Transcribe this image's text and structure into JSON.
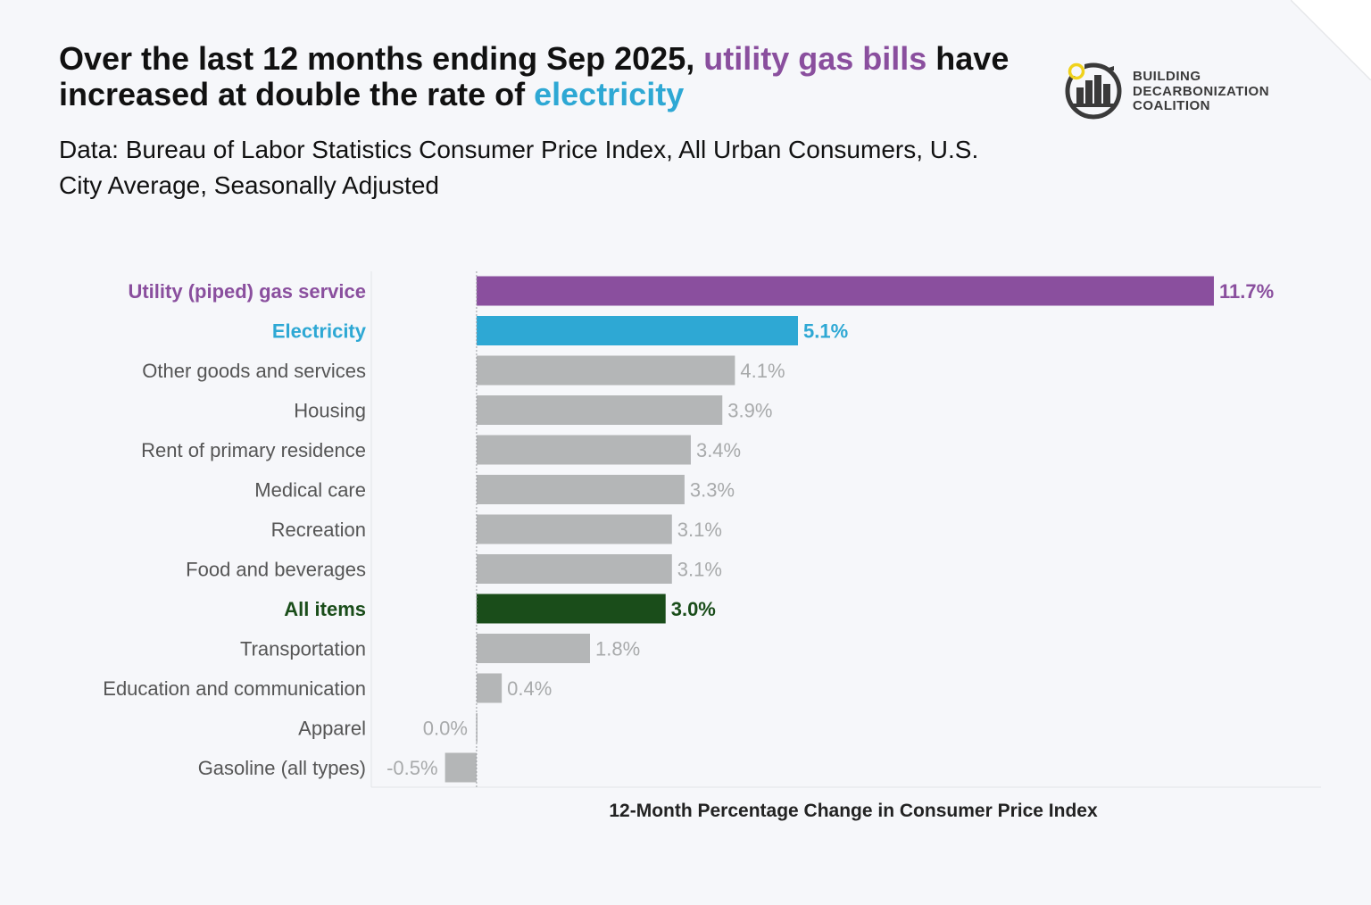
{
  "title": {
    "part1": "Over the last 12 months ending Sep 2025, ",
    "highlight_gas": "utility gas bills",
    "part2": " have increased at double the rate of ",
    "highlight_elec": "electricity"
  },
  "subtitle": "Data: Bureau of Labor Statistics Consumer Price Index, All Urban Consumers, U.S. City Average, Seasonally Adjusted",
  "logo": {
    "line1": "BUILDING",
    "line2": "DECARBONIZATION",
    "line3": "COALITION"
  },
  "colors": {
    "gas": "#8a4f9e",
    "electricity": "#2ea8d4",
    "all_items": "#1a4d1a",
    "other": "#b4b6b7",
    "other_label": "#a8aaab"
  },
  "chart_data": {
    "type": "bar",
    "orientation": "horizontal",
    "categories": [
      "Utility (piped) gas service",
      "Electricity",
      "Other goods and services",
      "Housing",
      "Rent of primary residence",
      "Medical care",
      "Recreation",
      "Food and beverages",
      "All items",
      "Transportation",
      "Education and communication",
      "Apparel",
      "Gasoline (all types)"
    ],
    "values": [
      11.7,
      5.1,
      4.1,
      3.9,
      3.4,
      3.3,
      3.1,
      3.1,
      3.0,
      1.8,
      0.4,
      0.0,
      -0.5
    ],
    "value_labels": [
      "11.7%",
      "5.1%",
      "4.1%",
      "3.9%",
      "3.4%",
      "3.3%",
      "3.1%",
      "3.1%",
      "3.0%",
      "1.8%",
      "0.4%",
      "0.0%",
      "-0.5%"
    ],
    "highlight": [
      "gas",
      "electricity",
      "other",
      "other",
      "other",
      "other",
      "other",
      "other",
      "all_items",
      "other",
      "other",
      "other",
      "other"
    ],
    "xlabel": "12-Month Percentage Change in Consumer Price Index",
    "ylabel": "",
    "xlim": [
      -1.67,
      13.4
    ],
    "grid": false,
    "legend": "none"
  }
}
